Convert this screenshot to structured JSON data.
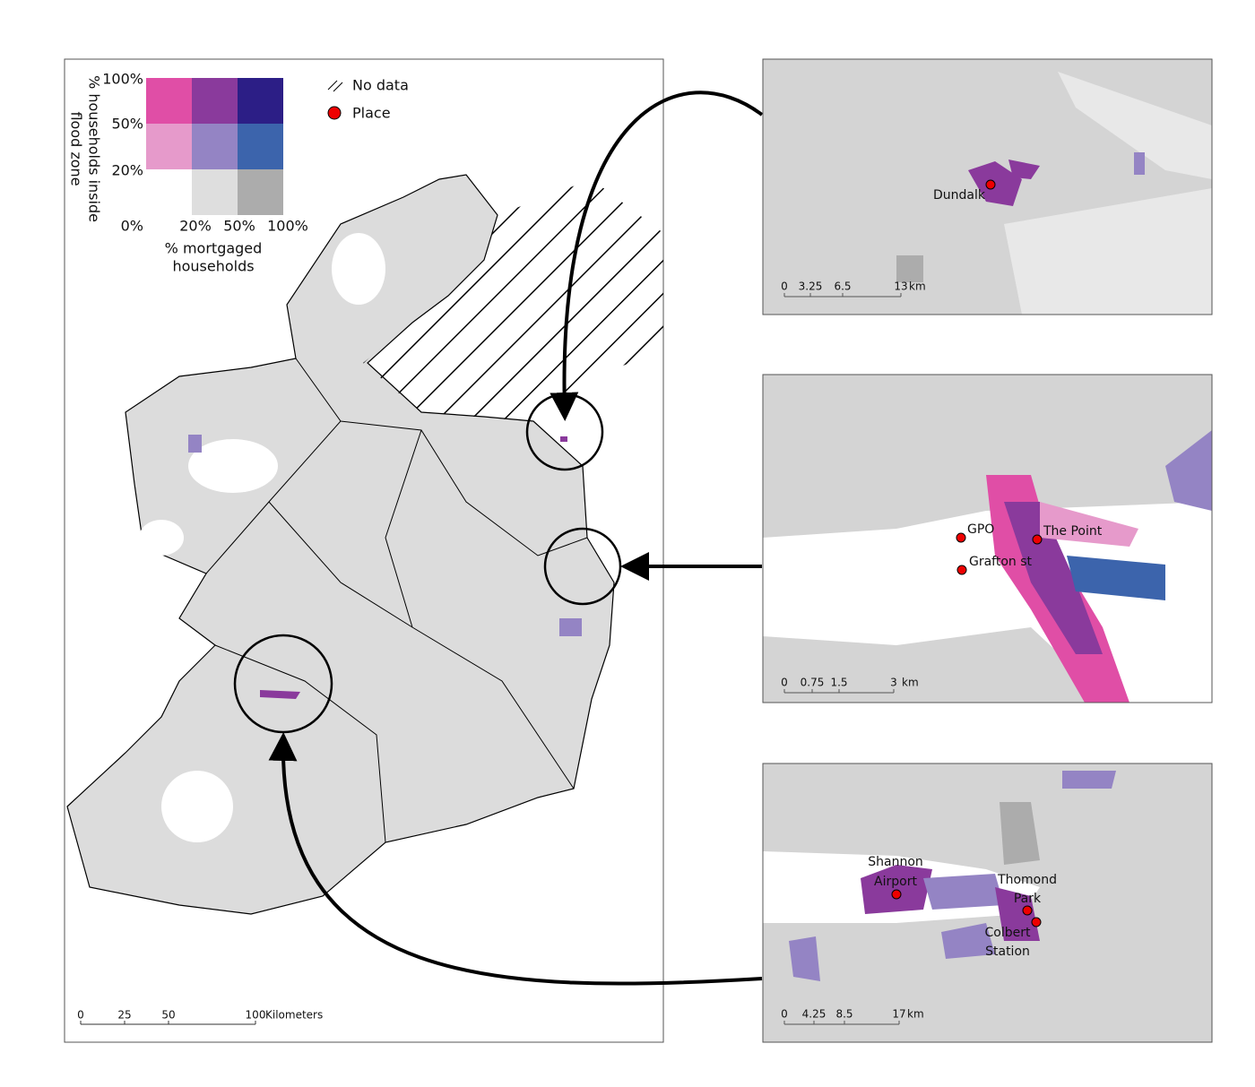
{
  "main_map": {
    "legend": {
      "y_title_lines": [
        "% households inside",
        "flood zone"
      ],
      "x_title_lines": [
        "% mortgaged",
        "households"
      ],
      "y_labels": [
        "100%",
        "50%",
        "20%",
        "0%"
      ],
      "x_labels": [
        "20%",
        "50%",
        "100%"
      ],
      "colors": [
        [
          "#e04ea6",
          "#8a3a9c",
          "#2c1e86"
        ],
        [
          "#e69acb",
          "#9484c4",
          "#3c64ac"
        ],
        [
          null,
          "#dedede",
          "#acacac"
        ]
      ],
      "no_data": "No data",
      "place": "Place"
    },
    "scale_bar": [
      "0",
      "25",
      "50",
      "100"
    ],
    "scale_unit": "Kilometers"
  },
  "insets": [
    {
      "places": [
        {
          "label_lines": [
            "Dundalk"
          ]
        }
      ],
      "scale_bar": [
        "0",
        "3.25",
        "6.5",
        "13"
      ],
      "scale_unit": "km"
    },
    {
      "places": [
        {
          "label_lines": [
            "GPO"
          ]
        },
        {
          "label_lines": [
            "The Point"
          ]
        },
        {
          "label_lines": [
            "Grafton st"
          ]
        }
      ],
      "scale_bar": [
        "0",
        "0.75",
        "1.5",
        "3"
      ],
      "scale_unit": "km"
    },
    {
      "places": [
        {
          "label_lines": [
            "Shannon",
            "Airport"
          ]
        },
        {
          "label_lines": [
            "Thomond",
            "Park"
          ]
        },
        {
          "label_lines": [
            "Colbert",
            "Station"
          ]
        }
      ],
      "scale_bar": [
        "0",
        "4.25",
        "8.5",
        "17"
      ],
      "scale_unit": "km"
    }
  ]
}
